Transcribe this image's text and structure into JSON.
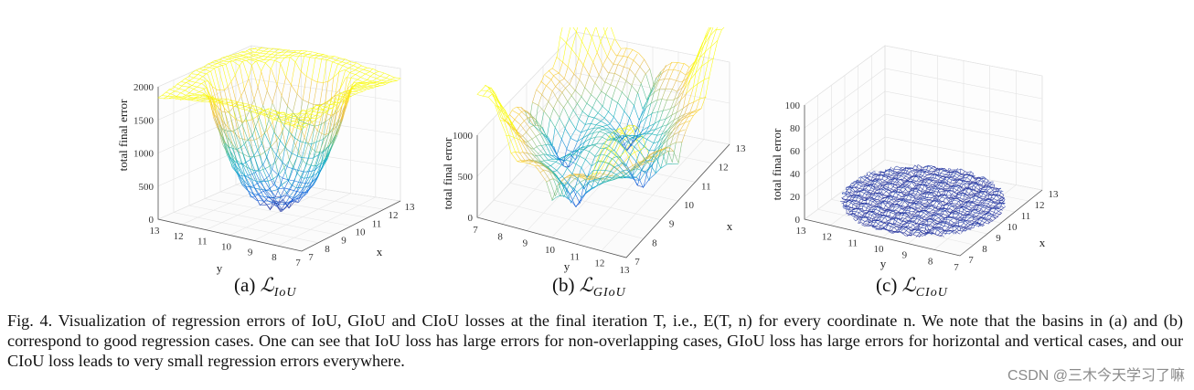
{
  "chart_data": [
    {
      "type": "surface",
      "id": "iou",
      "zlabel": "total final error",
      "xlabel": "x",
      "ylabel": "y",
      "z_ticks": [
        "0",
        "500",
        "1000",
        "1500",
        "2000"
      ],
      "x_ticks": [
        "7",
        "8",
        "9",
        "10",
        "11",
        "12",
        "13"
      ],
      "y_ticks": [
        "13",
        "12",
        "11",
        "10",
        "9",
        "8",
        "7"
      ],
      "zlim": [
        0,
        2000
      ],
      "xlim": [
        7,
        13
      ],
      "ylim": [
        7,
        13
      ],
      "subcaption_prefix": "(a) ",
      "subcaption_symbol": "ℒ",
      "subcaption_sub": "IoU"
    },
    {
      "type": "surface",
      "id": "giou",
      "zlabel": "total final error",
      "xlabel": "x",
      "ylabel": "y",
      "z_ticks": [
        "0",
        "500",
        "1000"
      ],
      "x_ticks": [
        "7",
        "8",
        "9",
        "10",
        "11",
        "12",
        "13"
      ],
      "y_ticks": [
        "7",
        "8",
        "9",
        "10",
        "11",
        "12",
        "13"
      ],
      "zlim": [
        0,
        1000
      ],
      "xlim": [
        7,
        13
      ],
      "ylim": [
        7,
        13
      ],
      "subcaption_prefix": "(b) ",
      "subcaption_symbol": "ℒ",
      "subcaption_sub": "GIoU"
    },
    {
      "type": "surface",
      "id": "ciou",
      "zlabel": "total final error",
      "xlabel": "x",
      "ylabel": "y",
      "z_ticks": [
        "0",
        "20",
        "40",
        "60",
        "80",
        "100"
      ],
      "x_ticks": [
        "7",
        "8",
        "9",
        "10",
        "11",
        "12",
        "13"
      ],
      "y_ticks": [
        "13",
        "12",
        "11",
        "10",
        "9",
        "8",
        "7"
      ],
      "zlim": [
        0,
        100
      ],
      "xlim": [
        7,
        13
      ],
      "ylim": [
        7,
        13
      ],
      "subcaption_prefix": "(c) ",
      "subcaption_symbol": "ℒ",
      "subcaption_sub": "CIoU"
    }
  ],
  "caption": "Fig. 4.   Visualization of regression errors of IoU, GIoU and CIoU losses at the final iteration T, i.e., E(T, n) for every coordinate n. We note that the basins in (a) and (b) correspond to good regression cases. One can see that IoU loss has large errors for non-overlapping cases, GIoU loss has large errors for horizontal and vertical cases, and our CIoU loss leads to very small regression errors everywhere.",
  "watermark": "CSDN @三木今天学习了嘛"
}
